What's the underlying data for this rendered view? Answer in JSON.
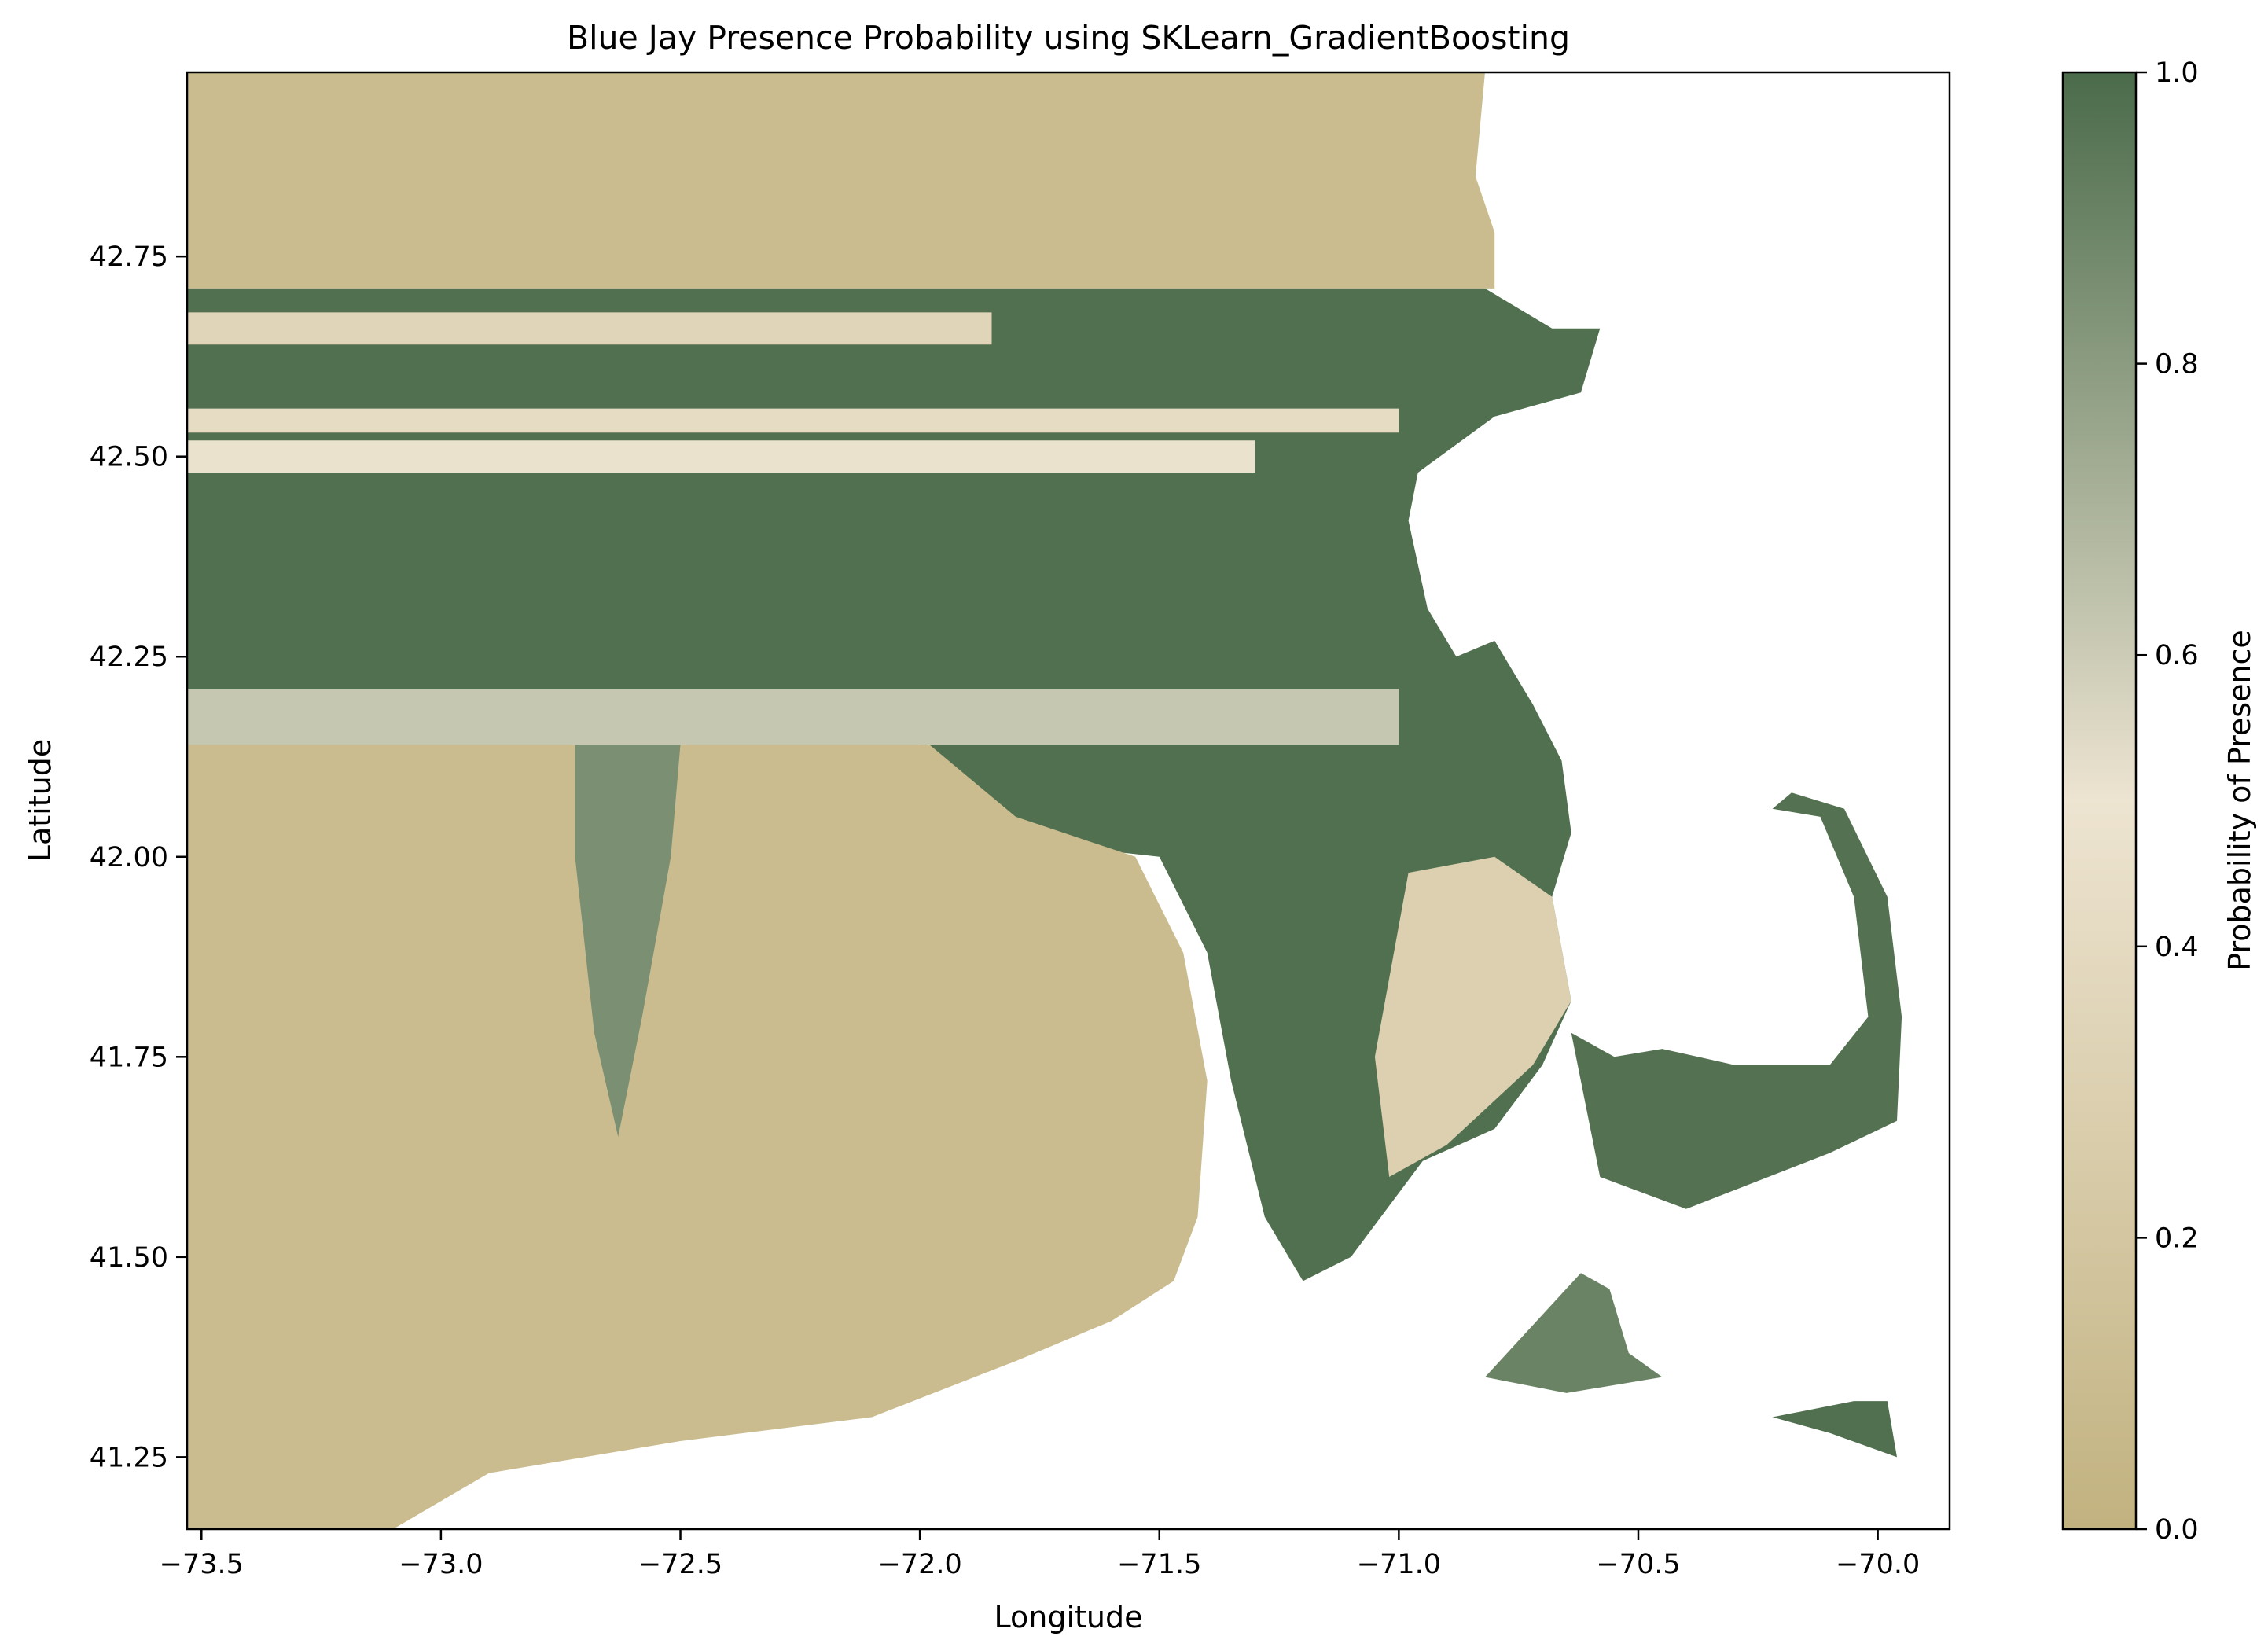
{
  "chart_data": {
    "type": "heatmap",
    "title": "Blue Jay Presence Probability using SKLearn_GradientBoosting",
    "xlabel": "Longitude",
    "ylabel": "Latitude",
    "xlim": [
      -73.53,
      -69.85
    ],
    "ylim": [
      41.16,
      42.98
    ],
    "xticks": [
      {
        "value": -73.5,
        "label": "−73.5"
      },
      {
        "value": -73.0,
        "label": "−73.0"
      },
      {
        "value": -72.5,
        "label": "−72.5"
      },
      {
        "value": -72.0,
        "label": "−72.0"
      },
      {
        "value": -71.5,
        "label": "−71.5"
      },
      {
        "value": -71.0,
        "label": "−71.0"
      },
      {
        "value": -70.5,
        "label": "−70.5"
      },
      {
        "value": -70.0,
        "label": "−70.0"
      }
    ],
    "yticks": [
      {
        "value": 41.25,
        "label": "41.25"
      },
      {
        "value": 41.5,
        "label": "41.50"
      },
      {
        "value": 41.75,
        "label": "41.75"
      },
      {
        "value": 42.0,
        "label": "42.00"
      },
      {
        "value": 42.25,
        "label": "42.25"
      },
      {
        "value": 42.5,
        "label": "42.50"
      },
      {
        "value": 42.75,
        "label": "42.75"
      }
    ],
    "grid": false,
    "colorbar": {
      "label": "Probability of Presence",
      "range": [
        0.0,
        1.0
      ],
      "ticks": [
        {
          "value": 0.0,
          "label": "0.0"
        },
        {
          "value": 0.2,
          "label": "0.2"
        },
        {
          "value": 0.4,
          "label": "0.4"
        },
        {
          "value": 0.6,
          "label": "0.6"
        },
        {
          "value": 0.8,
          "label": "0.8"
        },
        {
          "value": 1.0,
          "label": "1.0"
        }
      ],
      "colors": [
        {
          "value": 0.0,
          "color": "#c2b280"
        },
        {
          "value": 0.5,
          "color": "#ede4d1"
        },
        {
          "value": 1.0,
          "color": "#4a6b4a"
        }
      ]
    },
    "regions": [
      {
        "name": "northern-band",
        "value": 0.1,
        "polygon": [
          [
            -73.53,
            42.98
          ],
          [
            -70.82,
            42.98
          ],
          [
            -70.84,
            42.85
          ],
          [
            -70.8,
            42.78
          ],
          [
            -70.8,
            42.71
          ],
          [
            -73.53,
            42.71
          ]
        ]
      },
      {
        "name": "central-belt",
        "value": 0.98,
        "polygon": [
          [
            -73.53,
            42.71
          ],
          [
            -70.82,
            42.71
          ],
          [
            -70.68,
            42.66
          ],
          [
            -70.58,
            42.66
          ],
          [
            -70.62,
            42.58
          ],
          [
            -70.8,
            42.55
          ],
          [
            -70.96,
            42.48
          ],
          [
            -70.98,
            42.42
          ],
          [
            -70.94,
            42.31
          ],
          [
            -70.88,
            42.25
          ],
          [
            -70.8,
            42.27
          ],
          [
            -70.72,
            42.19
          ],
          [
            -70.66,
            42.12
          ],
          [
            -70.64,
            42.03
          ],
          [
            -70.68,
            41.95
          ],
          [
            -70.64,
            41.82
          ],
          [
            -70.7,
            41.74
          ],
          [
            -70.8,
            41.66
          ],
          [
            -70.95,
            41.62
          ],
          [
            -71.1,
            41.5
          ],
          [
            -71.2,
            41.47
          ],
          [
            -71.28,
            41.55
          ],
          [
            -71.35,
            41.72
          ],
          [
            -71.4,
            41.88
          ],
          [
            -71.5,
            42.0
          ],
          [
            -71.8,
            42.02
          ],
          [
            -72.0,
            42.14
          ],
          [
            -73.53,
            42.14
          ]
        ]
      },
      {
        "name": "light-stripe-1",
        "value": 0.35,
        "polygon": [
          [
            -73.53,
            42.68
          ],
          [
            -71.85,
            42.68
          ],
          [
            -71.85,
            42.64
          ],
          [
            -73.53,
            42.64
          ]
        ]
      },
      {
        "name": "light-stripe-2",
        "value": 0.42,
        "polygon": [
          [
            -73.53,
            42.56
          ],
          [
            -71.0,
            42.56
          ],
          [
            -71.0,
            42.53
          ],
          [
            -73.53,
            42.53
          ]
        ]
      },
      {
        "name": "light-stripe-3",
        "value": 0.48,
        "polygon": [
          [
            -73.53,
            42.52
          ],
          [
            -71.3,
            42.52
          ],
          [
            -71.3,
            42.48
          ],
          [
            -73.53,
            42.48
          ]
        ]
      },
      {
        "name": "mid-stripe",
        "value": 0.62,
        "polygon": [
          [
            -73.53,
            42.21
          ],
          [
            -71.0,
            42.21
          ],
          [
            -71.0,
            42.14
          ],
          [
            -73.53,
            42.14
          ]
        ]
      },
      {
        "name": "southwest-region",
        "value": 0.1,
        "polygon": [
          [
            -73.53,
            42.14
          ],
          [
            -71.98,
            42.14
          ],
          [
            -71.8,
            42.05
          ],
          [
            -71.55,
            42.0
          ],
          [
            -71.45,
            41.88
          ],
          [
            -71.4,
            41.72
          ],
          [
            -71.42,
            41.55
          ],
          [
            -71.47,
            41.47
          ],
          [
            -71.6,
            41.42
          ],
          [
            -71.8,
            41.37
          ],
          [
            -72.1,
            41.3
          ],
          [
            -72.5,
            41.27
          ],
          [
            -72.9,
            41.23
          ],
          [
            -73.1,
            41.16
          ],
          [
            -73.53,
            41.16
          ]
        ]
      },
      {
        "name": "connecticut-river-valley",
        "value": 0.85,
        "polygon": [
          [
            -72.72,
            42.14
          ],
          [
            -72.5,
            42.14
          ],
          [
            -72.52,
            42.0
          ],
          [
            -72.58,
            41.8
          ],
          [
            -72.63,
            41.65
          ],
          [
            -72.68,
            41.78
          ],
          [
            -72.72,
            42.0
          ]
        ]
      },
      {
        "name": "southeast-plain",
        "value": 0.3,
        "polygon": [
          [
            -70.98,
            41.98
          ],
          [
            -70.8,
            42.0
          ],
          [
            -70.68,
            41.95
          ],
          [
            -70.64,
            41.82
          ],
          [
            -70.72,
            41.74
          ],
          [
            -70.9,
            41.64
          ],
          [
            -71.02,
            41.6
          ],
          [
            -71.05,
            41.75
          ]
        ]
      },
      {
        "name": "cape-cod",
        "value": 0.97,
        "polygon": [
          [
            -70.64,
            41.78
          ],
          [
            -70.58,
            41.6
          ],
          [
            -70.4,
            41.56
          ],
          [
            -70.1,
            41.63
          ],
          [
            -69.96,
            41.67
          ],
          [
            -69.95,
            41.8
          ],
          [
            -69.98,
            41.95
          ],
          [
            -70.07,
            42.06
          ],
          [
            -70.18,
            42.08
          ],
          [
            -70.22,
            42.06
          ],
          [
            -70.12,
            42.05
          ],
          [
            -70.05,
            41.95
          ],
          [
            -70.02,
            41.8
          ],
          [
            -70.1,
            41.74
          ],
          [
            -70.3,
            41.74
          ],
          [
            -70.45,
            41.76
          ],
          [
            -70.55,
            41.75
          ]
        ]
      },
      {
        "name": "marthas-vineyard",
        "value": 0.9,
        "polygon": [
          [
            -70.82,
            41.35
          ],
          [
            -70.62,
            41.48
          ],
          [
            -70.56,
            41.46
          ],
          [
            -70.52,
            41.38
          ],
          [
            -70.45,
            41.35
          ],
          [
            -70.65,
            41.33
          ]
        ]
      },
      {
        "name": "nantucket",
        "value": 0.98,
        "polygon": [
          [
            -70.22,
            41.3
          ],
          [
            -70.1,
            41.28
          ],
          [
            -69.96,
            41.25
          ],
          [
            -69.98,
            41.32
          ],
          [
            -70.05,
            41.32
          ]
        ]
      }
    ]
  }
}
